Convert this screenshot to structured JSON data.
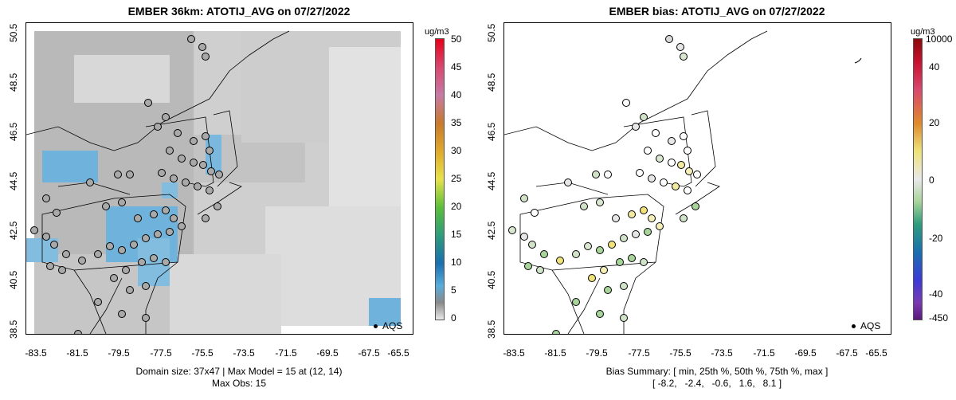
{
  "left": {
    "title": "EMBER 36km: ATOTIJ_AVG on 07/27/2022",
    "footer_line1": "Domain size: 37x47 | Max Model = 15 at (12, 14)",
    "footer_line2": "Max Obs: 15",
    "colorbar_unit": "ug/m3",
    "colorbar_labels": [
      "50",
      "45",
      "40",
      "35",
      "30",
      "25",
      "20",
      "15",
      "10",
      "5",
      "0"
    ],
    "legend": "AQS"
  },
  "right": {
    "title": "EMBER bias: ATOTIJ_AVG on 07/27/2022",
    "footer_line1": "Bias Summary: [ min, 25th %, 50th %, 75th %, max ]",
    "footer_line2": "[ -8.2,   -2.4,   -0.6,   1.6,   8.1 ]",
    "colorbar_unit": "ug/m3",
    "colorbar_labels": [
      "10000",
      "40",
      "20",
      "0",
      "-20",
      "-40",
      "-450"
    ],
    "legend": "AQS"
  },
  "axes": {
    "x_ticks": [
      "-83.5",
      "-81.5",
      "-79.5",
      "-77.5",
      "-75.5",
      "-73.5",
      "-71.5",
      "-69.5",
      "-67.5",
      "-65.5"
    ],
    "y_ticks": [
      "50.5",
      "48.5",
      "46.5",
      "44.5",
      "42.5",
      "40.5",
      "38.5"
    ]
  },
  "colors": {
    "map_gray_dark": "#b8b8b8",
    "map_gray_light": "#e4e4e4",
    "model_blue": "#5aaedc",
    "bias_green": "#a8d49a",
    "bias_yellow": "#efe27a"
  }
}
